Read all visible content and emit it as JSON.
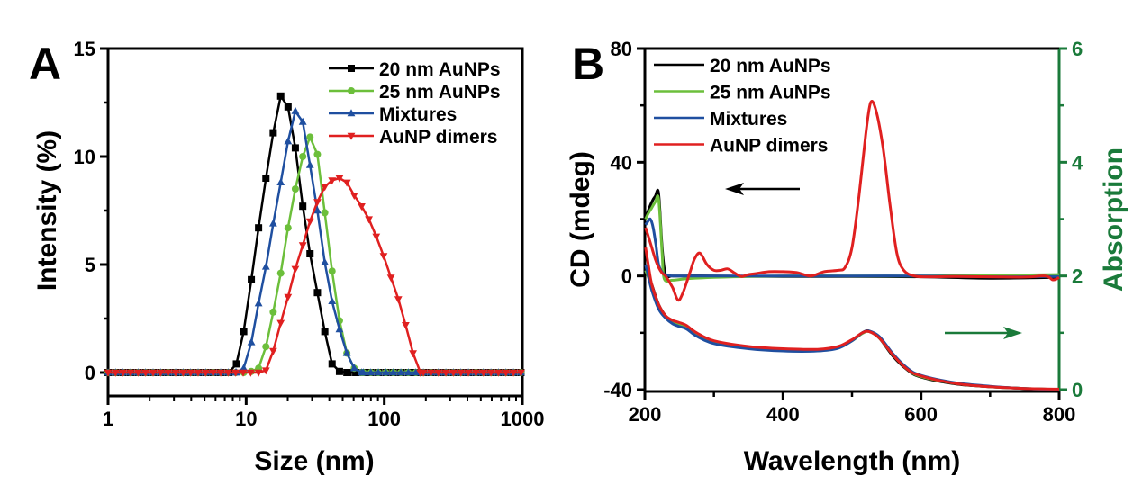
{
  "chart_data": [
    {
      "panel": "A",
      "type": "line",
      "title": "",
      "xlabel": "Size (nm)",
      "ylabel": "Intensity (%)",
      "xscale": "log",
      "xlim": [
        1,
        1000
      ],
      "ylim": [
        -1,
        15
      ],
      "xticks": [
        1,
        10,
        100,
        1000
      ],
      "xtick_labels": [
        "1",
        "10",
        "100",
        "1000"
      ],
      "yticks": [
        0,
        5,
        10,
        15
      ],
      "ytick_labels": [
        "0",
        "5",
        "10",
        "15"
      ],
      "grid": false,
      "legend_position": "top-right",
      "series": [
        {
          "name": "20 nm AuNPs",
          "color": "#000000",
          "marker": "square",
          "x": [
            7.5,
            8.5,
            9.6,
            10.9,
            12.3,
            13.9,
            15.7,
            17.8,
            20.1,
            22.7,
            25.7,
            29.0,
            32.8,
            37.1,
            41.9,
            47.4,
            53.6
          ],
          "y": [
            0,
            0.4,
            1.9,
            4.3,
            6.7,
            9.0,
            11.1,
            12.8,
            12.3,
            10.4,
            7.7,
            5.5,
            3.7,
            1.9,
            0.4,
            0.05,
            0
          ]
        },
        {
          "name": "25 nm AuNPs",
          "color": "#6cbf3b",
          "marker": "circle",
          "x": [
            9.6,
            10.9,
            12.3,
            13.9,
            15.7,
            17.8,
            20.1,
            22.7,
            25.7,
            29.0,
            32.8,
            37.1,
            41.9,
            47.4,
            53.6,
            60.6,
            68.5
          ],
          "y": [
            0,
            0.05,
            0.2,
            1.2,
            2.8,
            4.6,
            6.7,
            8.5,
            10.0,
            10.9,
            10.1,
            7.4,
            4.7,
            2.4,
            0.9,
            0.2,
            0
          ]
        },
        {
          "name": "Mixtures",
          "color": "#1f4fa0",
          "marker": "triangle-up",
          "x": [
            8.5,
            9.6,
            10.9,
            12.3,
            13.9,
            15.7,
            17.8,
            20.1,
            22.7,
            25.7,
            29.0,
            32.8,
            37.1,
            41.9,
            47.4,
            53.6,
            60.6,
            68.5
          ],
          "y": [
            0,
            0.2,
            1.4,
            3.2,
            4.9,
            6.9,
            8.8,
            10.7,
            12.1,
            11.6,
            9.6,
            7.5,
            5.1,
            3.3,
            2.0,
            0.9,
            0.2,
            0
          ]
        },
        {
          "name": "AuNP dimers",
          "color": "#e02020",
          "marker": "triangle-down",
          "x": [
            12.3,
            13.9,
            15.7,
            17.8,
            20.1,
            22.7,
            25.7,
            29.0,
            32.8,
            37.1,
            41.9,
            47.4,
            53.6,
            60.6,
            68.5,
            77.4,
            87.5,
            98.9,
            111.8,
            126.4,
            142.9,
            161.5,
            182.6
          ],
          "y": [
            0,
            0.1,
            1.0,
            2.3,
            3.5,
            4.8,
            5.9,
            7.0,
            7.9,
            8.6,
            8.9,
            9.0,
            8.8,
            8.2,
            7.7,
            7.1,
            6.3,
            5.4,
            4.4,
            3.4,
            2.2,
            0.9,
            0
          ]
        }
      ]
    },
    {
      "panel": "B",
      "type": "line",
      "title": "",
      "xlabel": "Wavelength (nm)",
      "ylabel": "CD (mdeg)",
      "y2label": "Absorption",
      "xlim": [
        200,
        800
      ],
      "ylim": [
        -40,
        80
      ],
      "y2lim": [
        0,
        6
      ],
      "xticks": [
        200,
        400,
        600,
        800
      ],
      "xtick_labels": [
        "200",
        "400",
        "600",
        "800"
      ],
      "yticks": [
        -40,
        0,
        40,
        80
      ],
      "ytick_labels": [
        "-40",
        "0",
        "40",
        "80"
      ],
      "y2ticks": [
        0,
        2,
        4,
        6
      ],
      "y2tick_labels": [
        "0",
        "2",
        "4",
        "6"
      ],
      "y2_color": "#1a7a3a",
      "grid": false,
      "legend_position": "top-left",
      "annotations": [
        {
          "type": "arrow",
          "direction": "left",
          "color": "#000000",
          "meaning": "CD curves -> left axis"
        },
        {
          "type": "arrow",
          "direction": "right",
          "color": "#1a7a3a",
          "meaning": "Absorption curves -> right axis"
        }
      ],
      "series": [
        {
          "name": "20 nm AuNPs",
          "color": "#000000",
          "kind": "CD",
          "axis": "left",
          "x": [
            201,
            205,
            210,
            215,
            220,
            225,
            230,
            240,
            260,
            300,
            400,
            500,
            600,
            700,
            800
          ],
          "y": [
            20,
            23,
            26,
            28,
            29,
            10,
            0.5,
            0,
            0,
            0,
            -0.2,
            -0.2,
            -0.3,
            -0.8,
            -0.5
          ]
        },
        {
          "name": "25 nm AuNPs",
          "color": "#6cbf3b",
          "kind": "CD",
          "axis": "left",
          "x": [
            201,
            205,
            210,
            215,
            220,
            225,
            228,
            240,
            260,
            300,
            400,
            500,
            600,
            700,
            800
          ],
          "y": [
            20,
            22,
            24,
            26,
            27,
            8,
            -1,
            -1.5,
            -1,
            -0.5,
            0,
            0,
            0,
            0.2,
            0.5
          ]
        },
        {
          "name": "Mixtures",
          "color": "#1f4fa0",
          "kind": "CD",
          "axis": "left",
          "x": [
            201,
            204,
            208,
            212,
            216,
            220,
            226,
            232,
            240,
            260,
            300,
            400,
            500,
            600,
            700,
            800
          ],
          "y": [
            18,
            19,
            20,
            17,
            11,
            4,
            1,
            0.3,
            0,
            0,
            0,
            0,
            0,
            0,
            -0.3,
            -0.2
          ]
        },
        {
          "name": "AuNP dimers",
          "color": "#e02020",
          "kind": "CD",
          "axis": "left",
          "x": [
            201,
            205,
            210,
            215,
            220,
            225,
            230,
            240,
            248,
            255,
            265,
            272,
            280,
            290,
            300,
            310,
            320,
            330,
            340,
            350,
            360,
            380,
            400,
            420,
            440,
            460,
            480,
            490,
            500,
            510,
            520,
            527,
            535,
            545,
            555,
            565,
            575,
            590,
            610,
            650,
            700,
            750,
            780,
            790,
            795,
            800
          ],
          "y": [
            17,
            14,
            10,
            6,
            3,
            1,
            0,
            -4,
            -8.5,
            -6,
            1,
            6,
            8,
            4,
            2,
            2,
            2.5,
            1,
            -0.2,
            0.5,
            0.8,
            1.5,
            1.5,
            1.2,
            0,
            1.5,
            2,
            3,
            10,
            28,
            50,
            61,
            58,
            45,
            25,
            8,
            2,
            0,
            -0.3,
            -0.2,
            -0.3,
            -0.4,
            0,
            -1.3,
            -1.2,
            -0.5
          ]
        },
        {
          "name": "20 nm AuNPs",
          "color": "#000000",
          "kind": "Absorption",
          "axis": "right",
          "x": [
            201,
            205,
            210,
            220,
            230,
            240,
            250,
            260,
            275,
            300,
            350,
            400,
            450,
            480,
            500,
            515,
            525,
            540,
            560,
            580,
            600,
            650,
            700,
            750,
            800
          ],
          "y": [
            2.15,
            2.05,
            1.85,
            1.5,
            1.3,
            1.2,
            1.17,
            1.12,
            0.97,
            0.84,
            0.74,
            0.7,
            0.7,
            0.75,
            0.87,
            1.0,
            1.03,
            0.9,
            0.58,
            0.35,
            0.22,
            0.1,
            0.05,
            0.02,
            0.0
          ]
        },
        {
          "name": "25 nm AuNPs",
          "color": "#6cbf3b",
          "kind": "Absorption",
          "axis": "right",
          "x": [
            201,
            205,
            210,
            220,
            230,
            240,
            250,
            260,
            275,
            300,
            350,
            400,
            450,
            480,
            500,
            515,
            525,
            540,
            560,
            580,
            600,
            650,
            700,
            750,
            800
          ],
          "y": [
            2.1,
            1.98,
            1.78,
            1.45,
            1.28,
            1.2,
            1.14,
            1.1,
            0.96,
            0.83,
            0.73,
            0.69,
            0.69,
            0.74,
            0.86,
            0.99,
            1.02,
            0.9,
            0.6,
            0.36,
            0.23,
            0.11,
            0.05,
            0.02,
            0.0
          ]
        },
        {
          "name": "Mixtures",
          "color": "#1f4fa0",
          "kind": "Absorption",
          "axis": "right",
          "x": [
            201,
            205,
            210,
            220,
            230,
            240,
            250,
            260,
            275,
            300,
            350,
            400,
            450,
            480,
            500,
            515,
            525,
            540,
            560,
            580,
            600,
            650,
            700,
            750,
            800
          ],
          "y": [
            2.2,
            2.0,
            1.75,
            1.42,
            1.26,
            1.16,
            1.11,
            1.07,
            0.94,
            0.81,
            0.72,
            0.68,
            0.68,
            0.73,
            0.86,
            1.0,
            1.03,
            0.93,
            0.62,
            0.38,
            0.25,
            0.12,
            0.06,
            0.02,
            0.0
          ]
        },
        {
          "name": "AuNP dimers",
          "color": "#e02020",
          "kind": "Absorption",
          "axis": "right",
          "x": [
            201,
            205,
            210,
            220,
            230,
            240,
            250,
            260,
            275,
            300,
            350,
            400,
            450,
            480,
            500,
            515,
            525,
            540,
            560,
            580,
            600,
            650,
            700,
            750,
            800
          ],
          "y": [
            2.5,
            2.2,
            1.85,
            1.5,
            1.3,
            1.22,
            1.18,
            1.13,
            1.0,
            0.86,
            0.76,
            0.72,
            0.71,
            0.76,
            0.88,
            1.0,
            1.02,
            0.9,
            0.6,
            0.36,
            0.24,
            0.11,
            0.05,
            0.02,
            0.01
          ]
        }
      ]
    }
  ],
  "panels": {
    "A": {
      "letter": "A"
    },
    "B": {
      "letter": "B"
    }
  },
  "legend_A": [
    "20 nm AuNPs",
    "25 nm AuNPs",
    "Mixtures",
    "AuNP dimers"
  ],
  "legend_B": [
    "20 nm AuNPs",
    "25 nm AuNPs",
    "Mixtures",
    "AuNP dimers"
  ]
}
